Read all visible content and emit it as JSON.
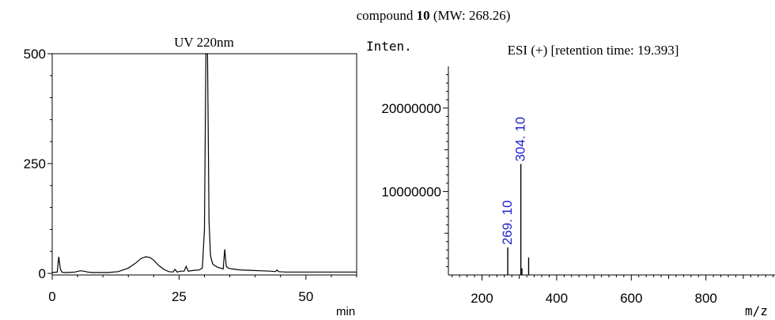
{
  "figure": {
    "title_prefix": "compound ",
    "title_bold": "10",
    "title_suffix": " (MW: 268.26)"
  },
  "chart_data": [
    {
      "type": "line",
      "title": "UV 220nm",
      "xlabel": "min",
      "ylabel": "",
      "xlim": [
        0,
        60
      ],
      "ylim": [
        0,
        500
      ],
      "x_ticks": [
        "0",
        "25",
        "50"
      ],
      "y_ticks": [
        "0",
        "250",
        "500"
      ],
      "grid": false,
      "series": [
        {
          "values_x": [
            0.0,
            1.0,
            1.3,
            1.6,
            1.9,
            2.3,
            3.0,
            4.5,
            5.5,
            6.2,
            7.0,
            8.0,
            9.5,
            11.0,
            13.0,
            15.0,
            16.5,
            17.5,
            18.5,
            19.3,
            20.0,
            21.0,
            22.0,
            23.0,
            23.8,
            24.2,
            24.6,
            25.3,
            26.0,
            26.4,
            26.8,
            28.0,
            29.0,
            29.6,
            30.0,
            30.3,
            30.6,
            30.9,
            31.2,
            31.6,
            32.0,
            32.6,
            33.2,
            33.7,
            34.0,
            34.3,
            34.7,
            35.5,
            37.0,
            39.0,
            41.0,
            43.0,
            44.0,
            44.3,
            44.6,
            46.0,
            48.0,
            52.0,
            56.0,
            60.0
          ],
          "values_y": [
            2,
            3,
            38,
            10,
            3,
            2,
            2,
            3,
            6,
            5,
            3,
            2,
            2,
            2,
            4,
            12,
            24,
            34,
            38,
            36,
            30,
            18,
            9,
            4,
            3,
            9,
            3,
            5,
            5,
            16,
            5,
            7,
            8,
            12,
            100,
            500,
            500,
            120,
            40,
            22,
            18,
            14,
            12,
            10,
            55,
            16,
            12,
            10,
            8,
            7,
            6,
            5,
            4,
            8,
            4,
            3,
            3,
            3,
            3,
            3
          ]
        }
      ]
    },
    {
      "type": "bar",
      "title": "ESI (+) [retention time: 19.393]",
      "xlabel": "m/z",
      "ylabel": "Inten.",
      "xlim": [
        110,
        985
      ],
      "ylim": [
        0,
        25000000
      ],
      "x_ticks": [
        "200",
        "400",
        "600",
        "800"
      ],
      "y_ticks": [
        "10000000",
        "20000000"
      ],
      "grid": false,
      "peaks": {
        "mz": [
          269.1,
          304.1,
          307.0,
          325.0
        ],
        "intensity": [
          3300000,
          13300000,
          800000,
          2100000
        ],
        "labels": [
          "269. 10",
          "304. 10",
          "",
          ""
        ]
      }
    }
  ]
}
